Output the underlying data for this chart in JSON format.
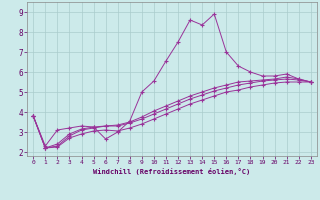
{
  "xlabel": "Windchill (Refroidissement éolien,°C)",
  "bg_color": "#cceaea",
  "grid_color": "#aacccc",
  "line_color": "#993399",
  "x_ticks": [
    0,
    1,
    2,
    3,
    4,
    5,
    6,
    7,
    8,
    9,
    10,
    11,
    12,
    13,
    14,
    15,
    16,
    17,
    18,
    19,
    20,
    21,
    22,
    23
  ],
  "y_ticks": [
    2,
    3,
    4,
    5,
    6,
    7,
    8,
    9
  ],
  "ylim": [
    1.8,
    9.5
  ],
  "xlim": [
    -0.5,
    23.5
  ],
  "series1_x": [
    0,
    1,
    2,
    3,
    4,
    5,
    6,
    7,
    8,
    9,
    10,
    11,
    12,
    13,
    14,
    15,
    16,
    17,
    18,
    19,
    20,
    21,
    22,
    23
  ],
  "series1_y": [
    3.8,
    2.3,
    3.1,
    3.2,
    3.3,
    3.25,
    2.65,
    3.0,
    3.55,
    5.0,
    5.55,
    6.55,
    7.5,
    8.6,
    8.35,
    8.9,
    7.0,
    6.3,
    6.0,
    5.8,
    5.8,
    5.9,
    5.65,
    5.5
  ],
  "series2_x": [
    0,
    1,
    2,
    3,
    4,
    5,
    6,
    7,
    8,
    9,
    10,
    11,
    12,
    13,
    14,
    15,
    16,
    17,
    18,
    19,
    20,
    21,
    22,
    23
  ],
  "series2_y": [
    3.8,
    2.2,
    2.25,
    2.7,
    2.9,
    3.05,
    3.1,
    3.05,
    3.2,
    3.4,
    3.65,
    3.9,
    4.15,
    4.4,
    4.6,
    4.8,
    5.0,
    5.1,
    5.25,
    5.35,
    5.45,
    5.5,
    5.5,
    5.5
  ],
  "series3_x": [
    0,
    1,
    2,
    3,
    4,
    5,
    6,
    7,
    8,
    9,
    10,
    11,
    12,
    13,
    14,
    15,
    16,
    17,
    18,
    19,
    20,
    21,
    22,
    23
  ],
  "series3_y": [
    3.8,
    2.2,
    2.3,
    2.8,
    3.1,
    3.2,
    3.3,
    3.3,
    3.45,
    3.65,
    3.9,
    4.15,
    4.4,
    4.65,
    4.85,
    5.05,
    5.2,
    5.35,
    5.45,
    5.55,
    5.6,
    5.65,
    5.6,
    5.5
  ],
  "series4_x": [
    0,
    1,
    2,
    3,
    4,
    5,
    6,
    7,
    8,
    9,
    10,
    11,
    12,
    13,
    14,
    15,
    16,
    17,
    18,
    19,
    20,
    21,
    22,
    23
  ],
  "series4_y": [
    3.8,
    2.2,
    2.4,
    2.9,
    3.15,
    3.25,
    3.3,
    3.35,
    3.5,
    3.75,
    4.05,
    4.3,
    4.55,
    4.8,
    5.0,
    5.2,
    5.35,
    5.5,
    5.55,
    5.6,
    5.65,
    5.75,
    5.65,
    5.5
  ]
}
